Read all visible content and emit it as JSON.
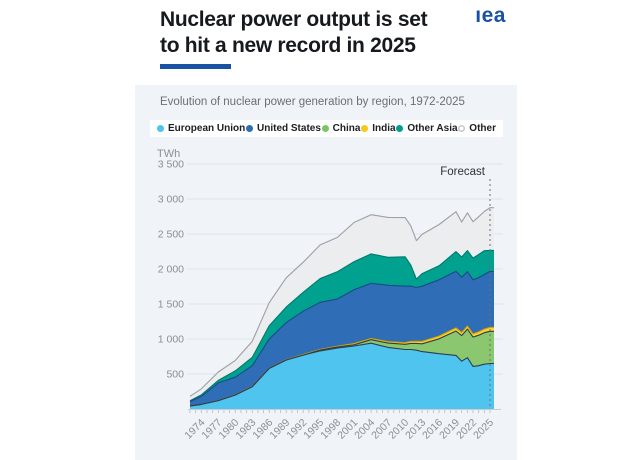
{
  "header": {
    "title_line1": "Nuclear power output is set",
    "title_line2": "to hit a new record in 2025",
    "logo_text": "ıea",
    "subtitle": "Evolution of nuclear power generation by region, 1972-2025"
  },
  "colors": {
    "accent_blue": "#1952a3",
    "panel_bg": "#f0f3f8",
    "gridline": "#e0e5eb",
    "axis_line": "#c9ced5",
    "tick": "#b5bbc2",
    "axis_text": "#8a9097",
    "forecast_line": "#6b7177"
  },
  "legend": {
    "items": [
      {
        "label": "European Union",
        "color": "#4fc4ef",
        "ring": false
      },
      {
        "label": "United States",
        "color": "#2f6eb6",
        "ring": false
      },
      {
        "label": "China",
        "color": "#7cc465",
        "ring": false
      },
      {
        "label": "India",
        "color": "#f6c81e",
        "ring": false
      },
      {
        "label": "Other Asia",
        "color": "#00a18e",
        "ring": false
      },
      {
        "label": "Other",
        "color": "#ffffff",
        "ring": true
      }
    ]
  },
  "chart_data": {
    "type": "area",
    "stacked": true,
    "title": "Nuclear power output is set to hit a new record in 2025",
    "subtitle": "Evolution of nuclear power generation by region, 1972-2025",
    "ylabel": "TWh",
    "unit_label": "TWh",
    "xlim": [
      1972,
      2025
    ],
    "ylim": [
      0,
      3500
    ],
    "grid": true,
    "legend_position": "top",
    "ytick_values": [
      500,
      1000,
      1500,
      2000,
      2500,
      3000,
      3500
    ],
    "ytick_labels": [
      "500",
      "1 000",
      "1 500",
      "2 000",
      "2 500",
      "3 000",
      "3 500"
    ],
    "xtick_years": [
      1974,
      1977,
      1980,
      1983,
      1986,
      1989,
      1992,
      1995,
      1998,
      2001,
      2004,
      2007,
      2010,
      2013,
      2016,
      2019,
      2022,
      2025
    ],
    "forecast_label": "Forecast",
    "forecast_year": 2025,
    "x": [
      1972,
      1974,
      1977,
      1980,
      1983,
      1986,
      1989,
      1992,
      1995,
      1998,
      2001,
      2004,
      2007,
      2010,
      2011,
      2012,
      2013,
      2016,
      2019,
      2020,
      2021,
      2022,
      2023,
      2024,
      2025
    ],
    "series": [
      {
        "name": "European Union",
        "color": "#4fc4ef",
        "edge": "#2c3e50",
        "values": [
          45,
          65,
          120,
          200,
          320,
          580,
          700,
          770,
          830,
          870,
          900,
          940,
          880,
          850,
          850,
          840,
          820,
          790,
          765,
          683,
          733,
          609,
          619,
          640,
          650
        ]
      },
      {
        "name": "China",
        "color": "#8bc76f",
        "edge": "#2c3e50",
        "values": [
          0,
          0,
          0,
          0,
          0,
          0,
          0,
          0,
          13,
          14,
          17,
          50,
          62,
          74,
          87,
          97,
          112,
          213,
          349,
          366,
          408,
          418,
          435,
          450,
          460
        ]
      },
      {
        "name": "India",
        "color": "#ffd02e",
        "edge": "#d3a500",
        "values": [
          0,
          1,
          2,
          3,
          4,
          5,
          6,
          8,
          8,
          12,
          19,
          17,
          19,
          23,
          29,
          30,
          33,
          38,
          45,
          43,
          44,
          46,
          48,
          52,
          55
        ]
      },
      {
        "name": "United States",
        "color": "#2f6eb6",
        "edge": "#1c4a85",
        "values": [
          60,
          114,
          251,
          251,
          294,
          414,
          529,
          619,
          673,
          674,
          769,
          789,
          806,
          807,
          790,
          769,
          789,
          805,
          809,
          790,
          778,
          772,
          775,
          780,
          800
        ]
      },
      {
        "name": "Other Asia",
        "color": "#00a18e",
        "edge": "#007a6b",
        "values": [
          12,
          22,
          35,
          90,
          120,
          190,
          220,
          270,
          340,
          390,
          400,
          420,
          400,
          420,
          300,
          120,
          180,
          200,
          280,
          290,
          300,
          310,
          330,
          340,
          300
        ]
      },
      {
        "name": "Other",
        "color": "#ebedef",
        "edge": "#9aa0a6",
        "values": [
          65,
          85,
          120,
          150,
          230,
          330,
          420,
          430,
          480,
          490,
          560,
          560,
          570,
          560,
          560,
          550,
          560,
          590,
          570,
          500,
          540,
          520,
          540,
          560,
          610
        ]
      }
    ]
  }
}
